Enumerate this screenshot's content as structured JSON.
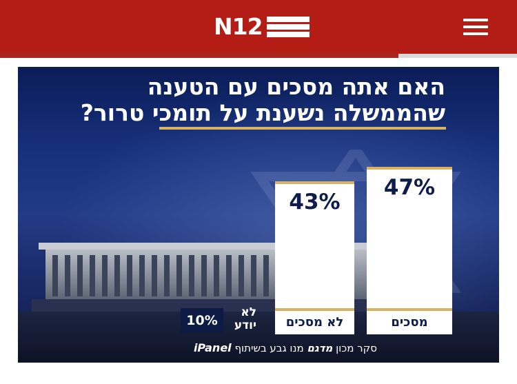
{
  "header": {
    "logo_text": "N12",
    "brand_color": "#b41d16"
  },
  "chart_data": {
    "type": "bar",
    "title": "האם אתה מסכים עם הטענה שהממשלה נשענת על תומכי טרור?",
    "title_lines": [
      "האם אתה מסכים עם הטענה",
      "שהממשלה נשענת על תומכי טרור?"
    ],
    "categories": [
      "מסכים",
      "לא מסכים",
      "לא יודע"
    ],
    "values": [
      47,
      43,
      10
    ],
    "value_labels": [
      "47%",
      "43%",
      "10%"
    ],
    "ylim": [
      0,
      50
    ],
    "colors": {
      "bar": "#ffffff",
      "accent": "#d8b462",
      "text": "#0d1c4a",
      "background": "#17307c"
    }
  },
  "footer": {
    "prefix": "סקר מכון",
    "brand": "מדגם",
    "middle": "מנו גבע בשיתוף",
    "partner": "iPanel"
  }
}
